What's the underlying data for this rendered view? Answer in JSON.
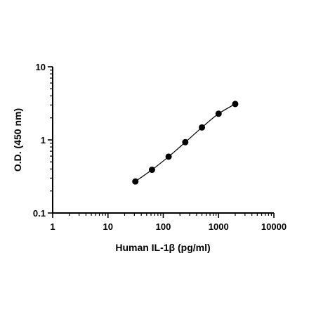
{
  "chart_data": {
    "type": "scatter",
    "title": "",
    "xlabel": "Human IL-1β (pg/ml)",
    "ylabel": "O.D. (450 nm)",
    "x_scale": "log",
    "y_scale": "log",
    "xlim": [
      1,
      10000
    ],
    "ylim": [
      0.1,
      10
    ],
    "x_ticks": [
      {
        "value": 1,
        "label": "1"
      },
      {
        "value": 10,
        "label": "10"
      },
      {
        "value": 100,
        "label": "100"
      },
      {
        "value": 1000,
        "label": "1000"
      },
      {
        "value": 10000,
        "label": "10000"
      }
    ],
    "y_ticks": [
      {
        "value": 0.1,
        "label": "0.1"
      },
      {
        "value": 1,
        "label": "1"
      },
      {
        "value": 10,
        "label": "10"
      }
    ],
    "grid": false,
    "legend": "none",
    "series": [
      {
        "x": [
          31.25,
          62.5,
          125,
          250,
          500,
          1000,
          2000
        ],
        "y": [
          0.27,
          0.39,
          0.59,
          0.93,
          1.48,
          2.28,
          3.1
        ],
        "marker": "filled-circle",
        "fit_curve": true,
        "color": "#000000"
      }
    ]
  }
}
